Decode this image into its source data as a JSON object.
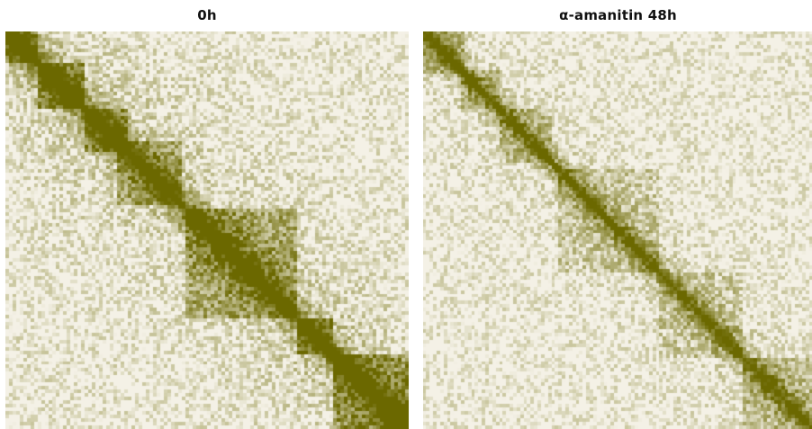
{
  "chart_data": [
    {
      "type": "heatmap",
      "title": "0h",
      "color_low": "#f4f1e6",
      "color_high": "#6b6800",
      "matrix_size": 112,
      "diagonal_width": 3.2,
      "domains": [
        {
          "start": 0.0,
          "end": 0.08,
          "strength": 0.95
        },
        {
          "start": 0.08,
          "end": 0.19,
          "strength": 0.92
        },
        {
          "start": 0.19,
          "end": 0.3,
          "strength": 0.9
        },
        {
          "start": 0.27,
          "end": 0.43,
          "strength": 0.7
        },
        {
          "start": 0.44,
          "end": 0.72,
          "strength": 0.78
        },
        {
          "start": 0.72,
          "end": 0.81,
          "strength": 0.85
        },
        {
          "start": 0.81,
          "end": 1.0,
          "strength": 0.92
        }
      ],
      "background_level": 0.4,
      "band_decay": 0.18,
      "noise": 0.3
    },
    {
      "type": "heatmap",
      "title": "α-amanitin 48h",
      "color_low": "#f4f1e6",
      "color_high": "#6b6800",
      "matrix_size": 112,
      "diagonal_width": 2.6,
      "domains": [
        {
          "start": 0.0,
          "end": 0.1,
          "strength": 0.55
        },
        {
          "start": 0.09,
          "end": 0.19,
          "strength": 0.5
        },
        {
          "start": 0.19,
          "end": 0.33,
          "strength": 0.45
        },
        {
          "start": 0.34,
          "end": 0.6,
          "strength": 0.4
        },
        {
          "start": 0.6,
          "end": 0.82,
          "strength": 0.38
        },
        {
          "start": 0.82,
          "end": 1.0,
          "strength": 0.5
        }
      ],
      "background_level": 0.22,
      "band_decay": 0.12,
      "noise": 0.28
    }
  ]
}
